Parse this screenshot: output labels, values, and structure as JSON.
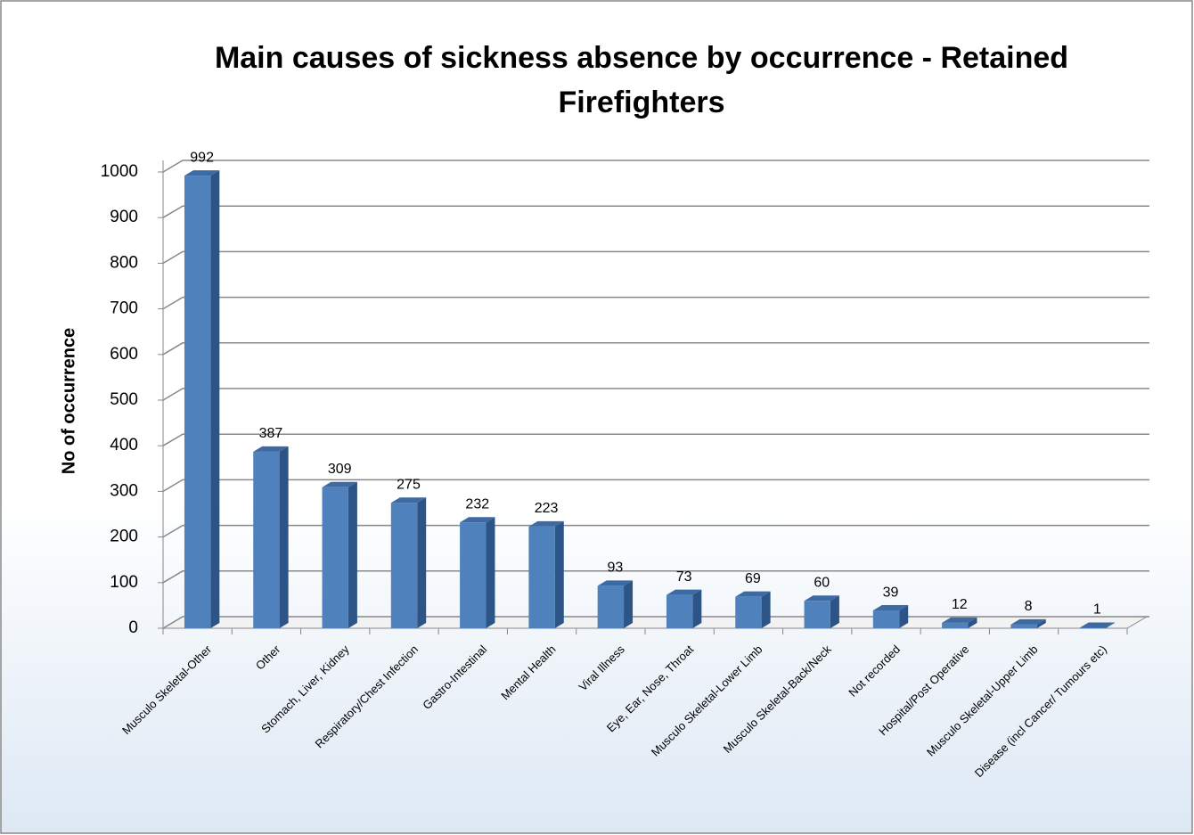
{
  "chart_data": {
    "type": "bar3d",
    "title": "Main causes of sickness absence by occurrence - Retained Firefighters",
    "ylabel": "No of occurrence",
    "categories": [
      "Musculo Skeletal-Other",
      "Other",
      "Stomach, Liver, Kidney",
      "Respiratory/Chest Infection",
      "Gastro-Intestinal",
      "Mental Health",
      "Viral Illness",
      "Eye, Ear, Nose, Throat",
      "Musculo Skeletal-Lower Limb",
      "Musculo Skeletal-Back/Neck",
      "Not recorded",
      "Hospital/Post Operative",
      "Musculo Skeletal-Upper Limb",
      "Disease (incl Cancer/ Tumours etc)"
    ],
    "values": [
      992,
      387,
      309,
      275,
      232,
      223,
      93,
      73,
      69,
      60,
      39,
      12,
      8,
      1
    ],
    "color": "#4f81bd",
    "ylim": [
      0,
      1000
    ],
    "yticks": [
      0,
      100,
      200,
      300,
      400,
      500,
      600,
      700,
      800,
      900,
      1000
    ],
    "grid": true
  }
}
